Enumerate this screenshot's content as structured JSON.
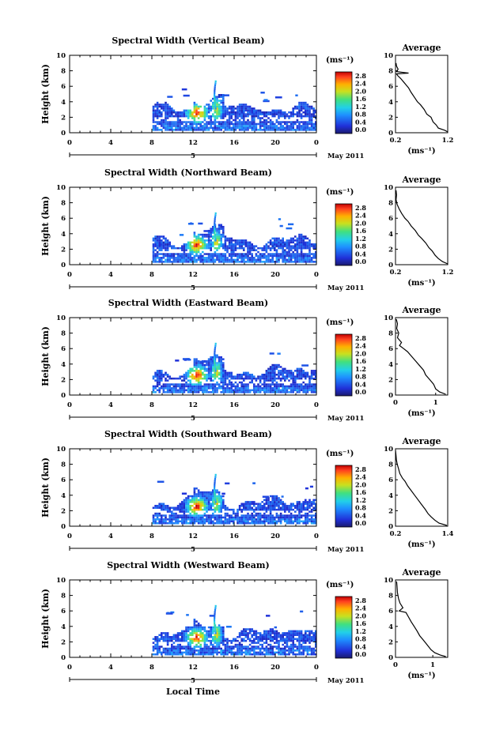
{
  "figure": {
    "xlabel": "Local Time",
    "date_label": "May 2011",
    "day_marker": "5",
    "avg_title": "Average",
    "unit": "(ms⁻¹)"
  },
  "chart_data": [
    {
      "type": "heatmap",
      "title": "Spectral Width (Vertical Beam)",
      "ylabel": "Height (km)",
      "xlabel": "",
      "xlim": [
        0,
        24
      ],
      "ylim": [
        0,
        10
      ],
      "xticks": [
        "0",
        "4",
        "8",
        "12",
        "16",
        "20",
        "0"
      ],
      "yticks": [
        "0",
        "2",
        "4",
        "6",
        "8",
        "10"
      ],
      "colorbar": {
        "label": "(ms⁻¹)",
        "range": [
          0.0,
          2.9
        ],
        "ticks": [
          "2.8",
          "2.4",
          "2.0",
          "1.6",
          "1.2",
          "0.8",
          "0.4",
          "0.0"
        ]
      },
      "profile": {
        "title": "Average",
        "xlabel": "(ms⁻¹)",
        "xlim": [
          0.2,
          1.2
        ],
        "xticks": [
          "0.2",
          "1.2"
        ],
        "yticks": [
          "0",
          "2",
          "4",
          "6",
          "8",
          "10"
        ],
        "points": [
          [
            1.2,
            0.1
          ],
          [
            1.15,
            0.3
          ],
          [
            1.02,
            0.6
          ],
          [
            0.98,
            1.0
          ],
          [
            0.92,
            1.4
          ],
          [
            0.88,
            2.0
          ],
          [
            0.8,
            2.4
          ],
          [
            0.75,
            3.0
          ],
          [
            0.68,
            3.6
          ],
          [
            0.62,
            4.0
          ],
          [
            0.56,
            4.6
          ],
          [
            0.5,
            5.2
          ],
          [
            0.45,
            5.8
          ],
          [
            0.4,
            6.2
          ],
          [
            0.35,
            6.6
          ],
          [
            0.3,
            7.0
          ],
          [
            0.24,
            7.4
          ],
          [
            0.22,
            7.6
          ],
          [
            0.45,
            7.7
          ],
          [
            0.22,
            7.9
          ],
          [
            0.25,
            8.2
          ],
          [
            0.22,
            8.6
          ],
          [
            0.21,
            9.0
          ]
        ]
      }
    },
    {
      "type": "heatmap",
      "title": "Spectral Width (Northward Beam)",
      "ylabel": "Height (km)",
      "xlabel": "",
      "xlim": [
        0,
        24
      ],
      "ylim": [
        0,
        10
      ],
      "xticks": [
        "0",
        "4",
        "8",
        "12",
        "16",
        "20",
        "0"
      ],
      "yticks": [
        "0",
        "2",
        "4",
        "6",
        "8",
        "10"
      ],
      "colorbar": {
        "label": "(ms⁻¹)",
        "range": [
          0.0,
          2.9
        ],
        "ticks": [
          "2.8",
          "2.4",
          "2.0",
          "1.6",
          "1.2",
          "0.8",
          "0.4",
          "0.0"
        ]
      },
      "profile": {
        "title": "Average",
        "xlabel": "(ms⁻¹)",
        "xlim": [
          0.2,
          1.2
        ],
        "xticks": [
          "0.2",
          "1.2"
        ],
        "yticks": [
          "0",
          "2",
          "4",
          "6",
          "8",
          "10"
        ],
        "points": [
          [
            1.2,
            0.1
          ],
          [
            1.1,
            0.4
          ],
          [
            1.02,
            0.8
          ],
          [
            0.96,
            1.2
          ],
          [
            0.9,
            1.8
          ],
          [
            0.84,
            2.2
          ],
          [
            0.78,
            2.8
          ],
          [
            0.7,
            3.4
          ],
          [
            0.64,
            3.8
          ],
          [
            0.58,
            4.4
          ],
          [
            0.5,
            5.0
          ],
          [
            0.44,
            5.6
          ],
          [
            0.38,
            6.0
          ],
          [
            0.32,
            6.6
          ],
          [
            0.27,
            7.2
          ],
          [
            0.23,
            7.8
          ],
          [
            0.21,
            8.4
          ],
          [
            0.22,
            9.0
          ],
          [
            0.21,
            9.6
          ]
        ]
      }
    },
    {
      "type": "heatmap",
      "title": "Spectral Width (Eastward Beam)",
      "ylabel": "Height (km)",
      "xlabel": "",
      "xlim": [
        0,
        24
      ],
      "ylim": [
        0,
        10
      ],
      "xticks": [
        "0",
        "4",
        "8",
        "12",
        "16",
        "20",
        "0"
      ],
      "yticks": [
        "0",
        "2",
        "4",
        "6",
        "8",
        "10"
      ],
      "colorbar": {
        "label": "(ms⁻¹)",
        "range": [
          0.0,
          2.9
        ],
        "ticks": [
          "2.8",
          "2.4",
          "2.0",
          "1.6",
          "1.2",
          "0.8",
          "0.4",
          "0.0"
        ]
      },
      "profile": {
        "title": "Average",
        "xlabel": "(ms⁻¹)",
        "xlim": [
          0,
          1.3
        ],
        "xticks": [
          "0",
          "1"
        ],
        "yticks": [
          "0",
          "2",
          "4",
          "6",
          "8",
          "10"
        ],
        "points": [
          [
            1.25,
            0.1
          ],
          [
            1.1,
            0.4
          ],
          [
            1.0,
            0.8
          ],
          [
            0.95,
            1.4
          ],
          [
            0.85,
            2.0
          ],
          [
            0.75,
            2.6
          ],
          [
            0.7,
            3.2
          ],
          [
            0.6,
            3.8
          ],
          [
            0.5,
            4.4
          ],
          [
            0.4,
            5.0
          ],
          [
            0.3,
            5.6
          ],
          [
            0.2,
            6.0
          ],
          [
            0.1,
            6.4
          ],
          [
            0.15,
            6.8
          ],
          [
            0.05,
            7.4
          ],
          [
            0.08,
            8.0
          ],
          [
            0.03,
            8.6
          ],
          [
            0.05,
            9.2
          ],
          [
            0.02,
            9.8
          ]
        ]
      }
    },
    {
      "type": "heatmap",
      "title": "Spectral Width (Southward Beam)",
      "ylabel": "Height (km)",
      "xlabel": "",
      "xlim": [
        0,
        24
      ],
      "ylim": [
        0,
        10
      ],
      "xticks": [
        "0",
        "4",
        "8",
        "12",
        "16",
        "20",
        "0"
      ],
      "yticks": [
        "0",
        "2",
        "4",
        "6",
        "8",
        "10"
      ],
      "colorbar": {
        "label": "(ms⁻¹)",
        "range": [
          0.0,
          2.9
        ],
        "ticks": [
          "2.8",
          "2.4",
          "2.0",
          "1.6",
          "1.2",
          "0.8",
          "0.4",
          "0.0"
        ]
      },
      "profile": {
        "title": "Average",
        "xlabel": "(ms⁻¹)",
        "xlim": [
          0.2,
          1.4
        ],
        "xticks": [
          "0.2",
          "1.4"
        ],
        "yticks": [
          "0",
          "2",
          "4",
          "6",
          "8",
          "10"
        ],
        "points": [
          [
            1.38,
            0.1
          ],
          [
            1.2,
            0.4
          ],
          [
            1.1,
            0.8
          ],
          [
            1.02,
            1.2
          ],
          [
            0.95,
            1.6
          ],
          [
            0.88,
            2.2
          ],
          [
            0.8,
            2.8
          ],
          [
            0.72,
            3.4
          ],
          [
            0.64,
            4.0
          ],
          [
            0.56,
            4.6
          ],
          [
            0.48,
            5.2
          ],
          [
            0.42,
            5.8
          ],
          [
            0.36,
            6.2
          ],
          [
            0.3,
            6.8
          ],
          [
            0.27,
            7.4
          ],
          [
            0.24,
            8.0
          ],
          [
            0.22,
            8.6
          ],
          [
            0.21,
            9.2
          ],
          [
            0.2,
            9.8
          ]
        ]
      }
    },
    {
      "type": "heatmap",
      "title": "Spectral Width (Westward Beam)",
      "ylabel": "Height (km)",
      "xlabel": "Local Time",
      "xlim": [
        0,
        24
      ],
      "ylim": [
        0,
        10
      ],
      "xticks": [
        "0",
        "4",
        "8",
        "12",
        "16",
        "20",
        "0"
      ],
      "yticks": [
        "0",
        "2",
        "4",
        "6",
        "8",
        "10"
      ],
      "colorbar": {
        "label": "(ms⁻¹)",
        "range": [
          0.0,
          2.9
        ],
        "ticks": [
          "2.8",
          "2.4",
          "2.0",
          "1.6",
          "1.2",
          "0.8",
          "0.4",
          "0.0"
        ]
      },
      "profile": {
        "title": "Average",
        "xlabel": "(ms⁻¹)",
        "xlim": [
          0,
          1.4
        ],
        "xticks": [
          "0",
          "1"
        ],
        "yticks": [
          "0",
          "2",
          "4",
          "6",
          "8",
          "10"
        ],
        "points": [
          [
            1.35,
            0.1
          ],
          [
            1.2,
            0.3
          ],
          [
            1.05,
            0.6
          ],
          [
            0.95,
            1.0
          ],
          [
            0.85,
            1.6
          ],
          [
            0.75,
            2.2
          ],
          [
            0.65,
            2.8
          ],
          [
            0.58,
            3.4
          ],
          [
            0.5,
            4.0
          ],
          [
            0.42,
            4.6
          ],
          [
            0.35,
            5.2
          ],
          [
            0.28,
            5.8
          ],
          [
            0.1,
            6.0
          ],
          [
            0.2,
            6.4
          ],
          [
            0.12,
            7.0
          ],
          [
            0.08,
            7.6
          ],
          [
            0.05,
            8.4
          ],
          [
            0.04,
            9.2
          ],
          [
            0.03,
            9.8
          ]
        ]
      }
    }
  ]
}
